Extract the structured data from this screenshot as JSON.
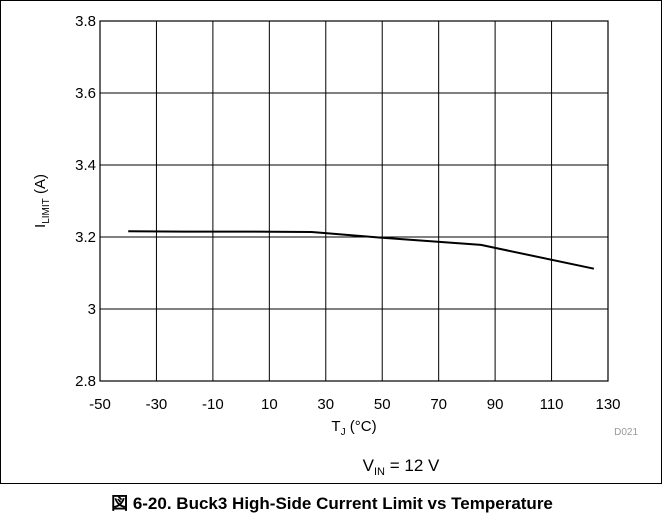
{
  "chart_data": {
    "type": "line",
    "x": [
      -40,
      -20,
      0,
      25,
      50,
      85,
      125
    ],
    "series": [
      {
        "values": [
          3.216,
          3.215,
          3.215,
          3.214,
          3.198,
          3.178,
          3.112
        ]
      }
    ],
    "xticks": [
      "-50",
      "-30",
      "-10",
      "10",
      "30",
      "50",
      "70",
      "90",
      "110",
      "130"
    ],
    "yticks": [
      "2.8",
      "3",
      "3.2",
      "3.4",
      "3.6",
      "3.8"
    ],
    "xlim": [
      -50,
      130
    ],
    "ylim": [
      2.8,
      3.8
    ],
    "x_grid_step": 20,
    "y_grid_step": 0.2,
    "grid": true,
    "xlabel": {
      "main": "T",
      "sub": "J",
      "rest": " (°C)"
    },
    "ylabel": {
      "main": "I",
      "sub": "LIMIT",
      "rest": " (A)"
    },
    "annotation": {
      "main": "V",
      "sub": "IN",
      "rest": " = 12 V"
    },
    "code": "D021",
    "line_color": "#000000"
  },
  "caption": "図 6-20. Buck3 High-Side Current Limit vs Temperature"
}
